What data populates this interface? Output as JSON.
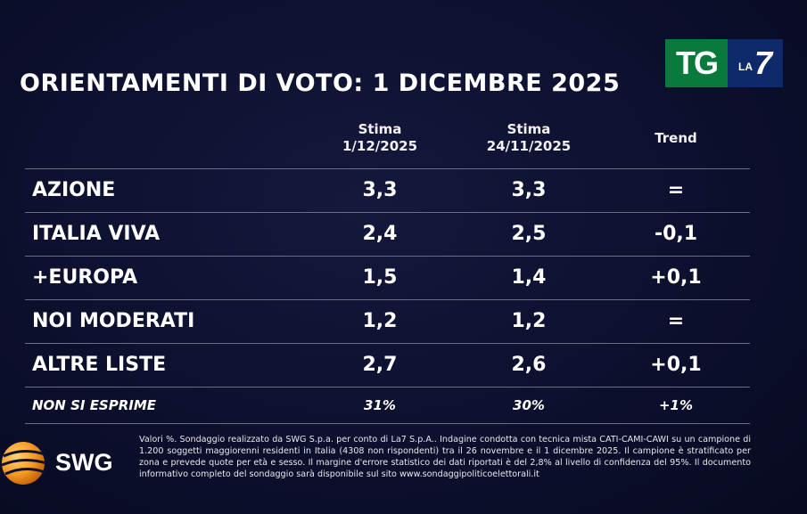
{
  "title": "ORIENTAMENTI DI VOTO: 1 DICEMBRE 2025",
  "logo": {
    "tg": "TG",
    "la": "LA",
    "seven": "7"
  },
  "chart_data": {
    "type": "table",
    "title": "ORIENTAMENTI DI VOTO: 1 DICEMBRE 2025",
    "columns": [
      {
        "line1": "Stima",
        "line2": "1/12/2025"
      },
      {
        "line1": "Stima",
        "line2": "24/11/2025"
      },
      {
        "line1": "Trend",
        "line2": ""
      }
    ],
    "rows": [
      {
        "party": "AZIONE",
        "current": "3,3",
        "previous": "3,3",
        "trend": "="
      },
      {
        "party": "ITALIA VIVA",
        "current": "2,4",
        "previous": "2,5",
        "trend": "-0,1"
      },
      {
        "party": "+EUROPA",
        "current": "1,5",
        "previous": "1,4",
        "trend": "+0,1"
      },
      {
        "party": "NOI MODERATI",
        "current": "1,2",
        "previous": "1,2",
        "trend": "="
      },
      {
        "party": "ALTRE LISTE",
        "current": "2,7",
        "previous": "2,6",
        "trend": "+0,1"
      },
      {
        "party": "NON SI ESPRIME",
        "current": "31%",
        "previous": "30%",
        "trend": "+1%"
      }
    ]
  },
  "brand": "SWG",
  "note": "Valori %. Sondaggio realizzato da SWG S.p.a. per conto di La7 S.p.A.. Indagine condotta con tecnica mista CATI-CAMI-CAWI su un campione di 1.200 soggetti maggiorenni residenti in Italia (4308 non rispondenti) tra il 26 novembre e il 1 dicembre 2025. Il campione è stratificato per zona e prevede quote per età e sesso. Il margine d'errore statistico dei dati riportati è del 2,8% al livello di confidenza del 95%. Il documento informativo completo del sondaggio sarà disponibile sul sito www.sondaggipoliticoelettorali.it"
}
